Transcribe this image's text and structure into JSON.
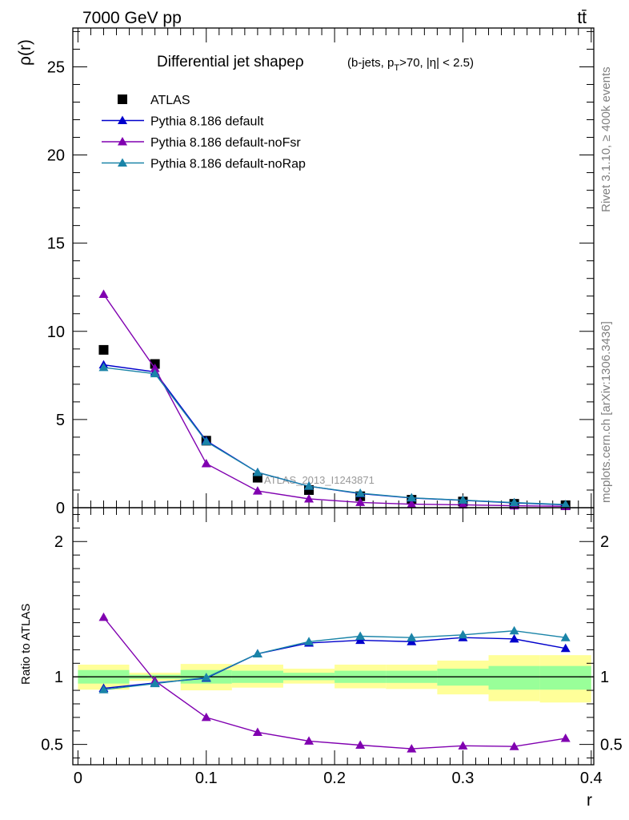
{
  "header": {
    "energy_label": "7000 GeV pp",
    "process_label": "tt̄"
  },
  "side_labels": {
    "rivet": "Rivet 3.1.10, ≥ 400k events",
    "mcplots": "mcplots.cern.ch [arXiv:1306.3436]"
  },
  "chart_data": [
    {
      "type": "scatter",
      "panel": "main",
      "title": "Differential jet shapeρ",
      "title_suffix": "(b-jets, p",
      "title_sub": "T",
      "title_tail": ">70, |η| < 2.5)",
      "ylabel": "ρ(r)",
      "xlabel": "r",
      "xlim": [
        -0.004,
        0.402
      ],
      "ylim": [
        0,
        27.2
      ],
      "y_ticks": [
        0,
        5,
        10,
        15,
        20,
        25
      ],
      "y_tick_labels": [
        "0",
        "5",
        "10",
        "15",
        "20",
        "25"
      ],
      "watermark": "ATLAS_2013_I1243871",
      "legend_position": "top-left",
      "x": [
        0.02,
        0.06,
        0.1,
        0.14,
        0.18,
        0.22,
        0.26,
        0.3,
        0.34,
        0.38
      ],
      "series": [
        {
          "name": "ATLAS",
          "marker": "square",
          "color": "#000000",
          "values": [
            8.95,
            8.15,
            3.8,
            1.7,
            1.0,
            0.65,
            0.45,
            0.35,
            0.22,
            0.14
          ]
        },
        {
          "name": "Pythia 8.186 default",
          "marker": "triangle",
          "color": "#0000cc",
          "values": [
            8.1,
            7.7,
            3.8,
            2.0,
            1.22,
            0.8,
            0.55,
            0.42,
            0.27,
            0.16
          ]
        },
        {
          "name": "Pythia 8.186 default-noFsr",
          "marker": "triangle",
          "color": "#8000b0",
          "values": [
            12.1,
            7.9,
            2.5,
            0.95,
            0.5,
            0.3,
            0.2,
            0.16,
            0.11,
            0.075
          ]
        },
        {
          "name": "Pythia 8.186 default-noRap",
          "marker": "triangle",
          "color": "#1a84a8",
          "values": [
            7.95,
            7.6,
            3.75,
            2.0,
            1.22,
            0.82,
            0.56,
            0.43,
            0.29,
            0.18
          ]
        }
      ]
    },
    {
      "type": "line",
      "panel": "ratio",
      "ylabel": "Ratio to ATLAS",
      "xlabel": "r",
      "xlim": [
        -0.004,
        0.402
      ],
      "ylim": [
        0.35,
        2.25
      ],
      "x_ticks": [
        0,
        0.1,
        0.2,
        0.3,
        0.4
      ],
      "x_tick_labels": [
        "0",
        "0.1",
        "0.2",
        "0.3",
        "0.4"
      ],
      "y_ticks": [
        0.5,
        1,
        2
      ],
      "y_tick_labels": [
        "0.5",
        "1",
        "2"
      ],
      "reference_line": 1,
      "x": [
        0.02,
        0.06,
        0.1,
        0.14,
        0.18,
        0.22,
        0.26,
        0.3,
        0.34,
        0.38
      ],
      "bands": [
        {
          "name": "total uncertainty",
          "color": "#ffff99",
          "bins": [
            {
              "xmin": 0.0,
              "xmax": 0.04,
              "low": 0.905,
              "high": 1.09
            },
            {
              "xmin": 0.04,
              "xmax": 0.08,
              "low": 0.97,
              "high": 1.03
            },
            {
              "xmin": 0.08,
              "xmax": 0.12,
              "low": 0.9,
              "high": 1.095
            },
            {
              "xmin": 0.12,
              "xmax": 0.16,
              "low": 0.92,
              "high": 1.09
            },
            {
              "xmin": 0.16,
              "xmax": 0.2,
              "low": 0.95,
              "high": 1.06
            },
            {
              "xmin": 0.2,
              "xmax": 0.24,
              "low": 0.915,
              "high": 1.09
            },
            {
              "xmin": 0.24,
              "xmax": 0.28,
              "low": 0.91,
              "high": 1.09
            },
            {
              "xmin": 0.28,
              "xmax": 0.32,
              "low": 0.87,
              "high": 1.12
            },
            {
              "xmin": 0.32,
              "xmax": 0.36,
              "low": 0.82,
              "high": 1.16
            },
            {
              "xmin": 0.36,
              "xmax": 0.4,
              "low": 0.81,
              "high": 1.16
            }
          ]
        },
        {
          "name": "statistical uncertainty",
          "color": "#99ff99",
          "bins": [
            {
              "xmin": 0.0,
              "xmax": 0.04,
              "low": 0.95,
              "high": 1.05
            },
            {
              "xmin": 0.04,
              "xmax": 0.08,
              "low": 0.985,
              "high": 1.015
            },
            {
              "xmin": 0.08,
              "xmax": 0.12,
              "low": 0.95,
              "high": 1.05
            },
            {
              "xmin": 0.12,
              "xmax": 0.16,
              "low": 0.955,
              "high": 1.045
            },
            {
              "xmin": 0.16,
              "xmax": 0.2,
              "low": 0.975,
              "high": 1.03
            },
            {
              "xmin": 0.2,
              "xmax": 0.24,
              "low": 0.955,
              "high": 1.045
            },
            {
              "xmin": 0.24,
              "xmax": 0.28,
              "low": 0.955,
              "high": 1.045
            },
            {
              "xmin": 0.28,
              "xmax": 0.32,
              "low": 0.935,
              "high": 1.06
            },
            {
              "xmin": 0.32,
              "xmax": 0.36,
              "low": 0.905,
              "high": 1.08
            },
            {
              "xmin": 0.36,
              "xmax": 0.4,
              "low": 0.905,
              "high": 1.08
            }
          ]
        }
      ],
      "series": [
        {
          "name": "Pythia 8.186 default",
          "color": "#0000cc",
          "values": [
            0.915,
            0.955,
            0.99,
            1.17,
            1.25,
            1.27,
            1.26,
            1.29,
            1.28,
            1.21
          ]
        },
        {
          "name": "Pythia 8.186 default-noFsr",
          "color": "#8000b0",
          "values": [
            1.44,
            0.97,
            0.7,
            0.59,
            0.525,
            0.495,
            0.468,
            0.49,
            0.485,
            0.545
          ]
        },
        {
          "name": "Pythia 8.186 default-noRap",
          "color": "#1a84a8",
          "values": [
            0.905,
            0.95,
            0.995,
            1.17,
            1.26,
            1.3,
            1.29,
            1.31,
            1.34,
            1.29
          ]
        }
      ]
    }
  ]
}
